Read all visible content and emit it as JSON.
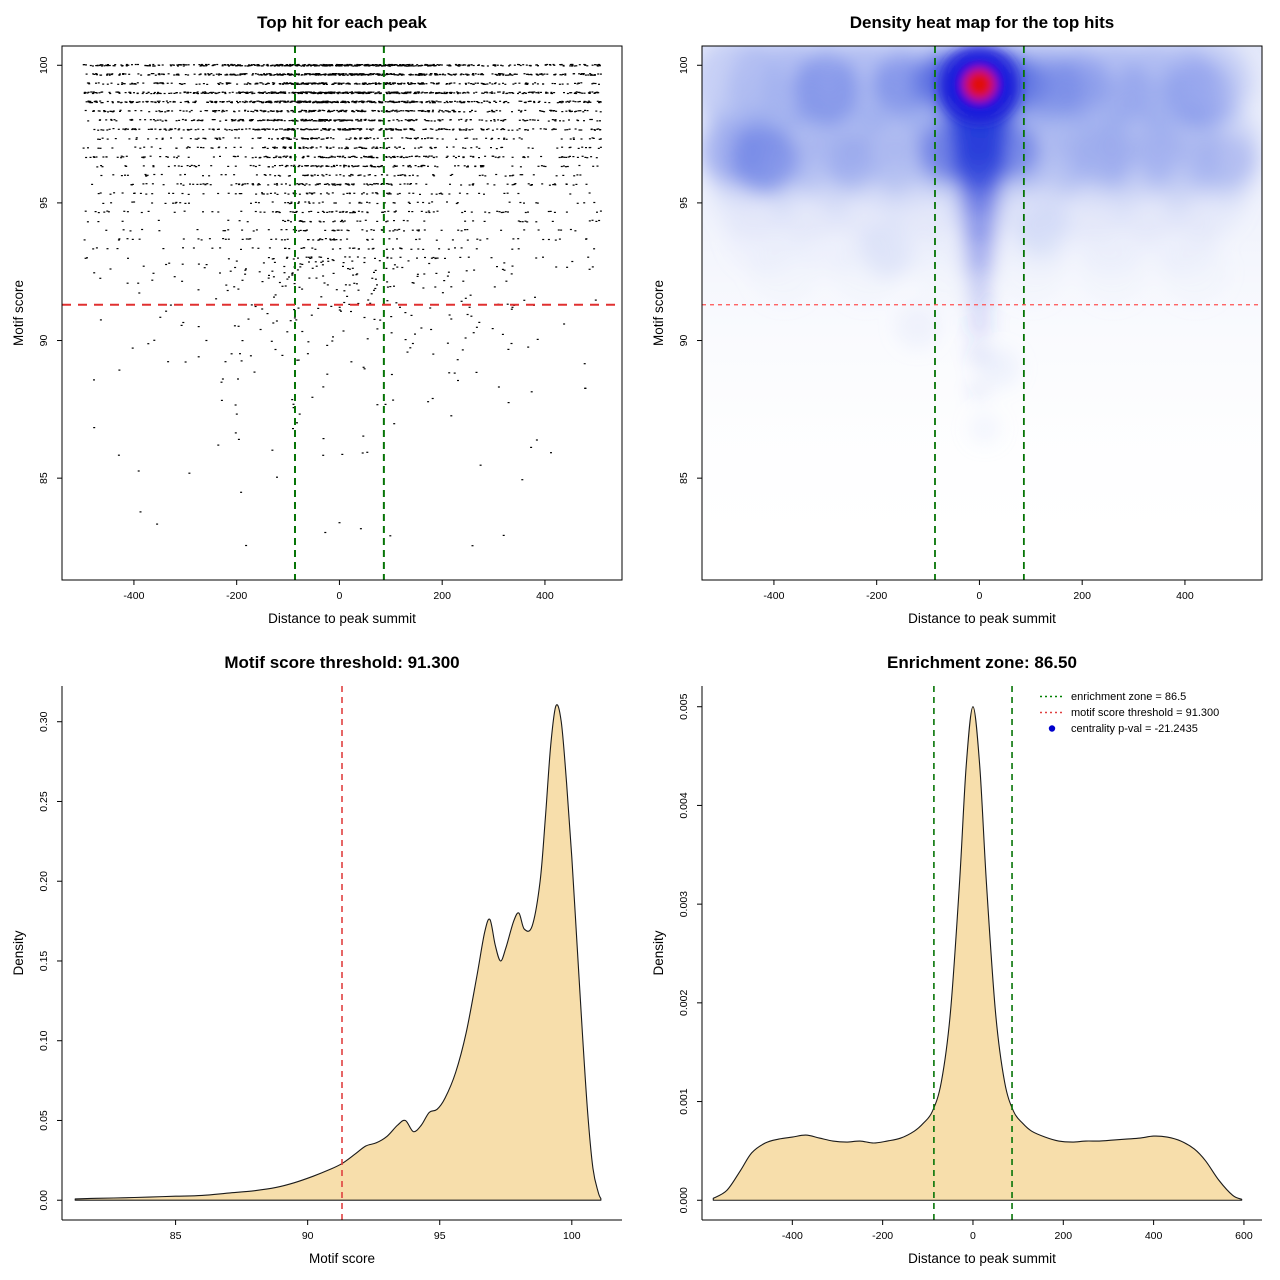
{
  "page": {
    "background": "#ffffff"
  },
  "values": {
    "motif_score_threshold": "91.300",
    "enrichment_zone": "86.50",
    "centrality_pval": "-21.2435"
  },
  "chart_data": [
    {
      "type": "scatter",
      "title": "Top hit for each peak",
      "xlabel": "Distance to peak summit",
      "ylabel": "Motif score",
      "xlim": [
        -540,
        550
      ],
      "ylim": [
        81.3,
        100.7
      ],
      "xticks": [
        -400,
        -200,
        0,
        200,
        400
      ],
      "yticks": [
        85,
        90,
        95,
        100
      ],
      "ytick_labels": [
        "85",
        "90",
        "95",
        "100"
      ],
      "point_color": "#000000",
      "vlines": {
        "x": [
          -86.5,
          86.5
        ],
        "color": "#067406",
        "width": 2,
        "dash": "7 5"
      },
      "hline": {
        "y": 91.3,
        "color": "#e03030",
        "width": 2,
        "dash": "9 7"
      },
      "generator": {
        "seed": 42,
        "rows": {
          "y_top": 100,
          "y_bottom": 93,
          "step": 0.333,
          "count_top": 520,
          "decay": 0.885,
          "uniform_frac": 0.55,
          "x_uniform": [
            -500,
            510
          ],
          "x_sigma": 115
        },
        "tail": {
          "count": 330,
          "y_top": 93,
          "y_min": 82.4,
          "x_sigma": 150,
          "uniform_frac": 0.45,
          "decay_scale": 2.4
        }
      }
    },
    {
      "type": "heatmap",
      "title": "Density heat map for the top hits",
      "xlabel": "Distance to peak summit",
      "ylabel": "Motif score",
      "xlim": [
        -540,
        550
      ],
      "ylim": [
        81.3,
        100.7
      ],
      "xticks": [
        -400,
        -200,
        0,
        200,
        400
      ],
      "yticks": [
        85,
        90,
        95,
        100
      ],
      "ytick_labels": [
        "85",
        "90",
        "95",
        "100"
      ],
      "hotspot": {
        "x": 0,
        "y": 99.3
      },
      "vlines": {
        "x": [
          -86.5,
          86.5
        ],
        "color": "#067406",
        "width": 1.8,
        "dash": "7 5"
      },
      "hline": {
        "y": 91.3,
        "color": "#ff5050",
        "width": 1.3,
        "dash": "4 4"
      },
      "bands": [
        {
          "y": 99.3,
          "from": -470,
          "to": 500,
          "step": 70,
          "r": 46,
          "color": "#8296ea",
          "opacity": 0.3
        },
        {
          "y": 98.1,
          "from": -450,
          "to": 480,
          "step": 95,
          "r": 40,
          "color": "#9caeee",
          "opacity": 0.16
        },
        {
          "y": 97.0,
          "from": -470,
          "to": 500,
          "step": 78,
          "r": 42,
          "color": "#8296ea",
          "opacity": 0.24
        },
        {
          "y": 96.3,
          "from": -460,
          "to": 490,
          "step": 85,
          "r": 38,
          "color": "#92a2ec",
          "opacity": 0.2
        },
        {
          "y": 95.1,
          "from": -440,
          "to": 470,
          "step": 110,
          "r": 40,
          "color": "#aab8f0",
          "opacity": 0.13
        },
        {
          "y": 93.8,
          "from": -420,
          "to": 450,
          "step": 135,
          "r": 38,
          "color": "#bac5f2",
          "opacity": 0.09
        },
        {
          "y": 92.5,
          "from": -380,
          "to": 420,
          "step": 160,
          "r": 34,
          "color": "#c6cff4",
          "opacity": 0.07
        }
      ],
      "spots": [
        {
          "x": -48,
          "y": 99.6,
          "r": 26,
          "color": "#2a3cd8",
          "opacity": 0.6
        },
        {
          "x": 48,
          "y": 99.6,
          "r": 26,
          "color": "#2a3cd8",
          "opacity": 0.6
        },
        {
          "x": -40,
          "y": 98.8,
          "r": 24,
          "color": "#2a3cd8",
          "opacity": 0.55
        },
        {
          "x": 40,
          "y": 98.8,
          "r": 24,
          "color": "#2a3cd8",
          "opacity": 0.55
        },
        {
          "x": -80,
          "y": 99.4,
          "r": 26,
          "color": "#3b52dc",
          "opacity": 0.5
        },
        {
          "x": 90,
          "y": 99.3,
          "r": 26,
          "color": "#4e66e0",
          "opacity": 0.5
        },
        {
          "x": -150,
          "y": 99.3,
          "r": 28,
          "color": "#5a70e2",
          "opacity": 0.45
        },
        {
          "x": -300,
          "y": 99.1,
          "r": 34,
          "color": "#5a70e2",
          "opacity": 0.4
        },
        {
          "x": 150,
          "y": 99.2,
          "r": 30,
          "color": "#5a70e2",
          "opacity": 0.4
        },
        {
          "x": 200,
          "y": 99.3,
          "r": 28,
          "color": "#6a7ee5",
          "opacity": 0.35
        },
        {
          "x": 300,
          "y": 99.0,
          "r": 26,
          "color": "#7b8fe8",
          "opacity": 0.3
        },
        {
          "x": 430,
          "y": 99.0,
          "r": 34,
          "color": "#6a7ee5",
          "opacity": 0.35
        },
        {
          "x": -420,
          "y": 96.6,
          "r": 34,
          "color": "#4e66e0",
          "opacity": 0.45
        },
        {
          "x": -480,
          "y": 96.9,
          "r": 30,
          "color": "#6a7ee5",
          "opacity": 0.35
        },
        {
          "x": -250,
          "y": 96.6,
          "r": 26,
          "color": "#7b8fe8",
          "opacity": 0.3
        },
        {
          "x": -60,
          "y": 96.9,
          "r": 30,
          "color": "#3b52dc",
          "opacity": 0.5
        },
        {
          "x": 60,
          "y": 96.9,
          "r": 28,
          "color": "#3b52dc",
          "opacity": 0.45
        },
        {
          "x": 240,
          "y": 96.8,
          "r": 30,
          "color": "#7b8fe8",
          "opacity": 0.3
        },
        {
          "x": 350,
          "y": 96.9,
          "r": 26,
          "color": "#8a9cea",
          "opacity": 0.25
        },
        {
          "x": 480,
          "y": 96.5,
          "r": 26,
          "color": "#8a9cea",
          "opacity": 0.3
        },
        {
          "x": -180,
          "y": 93.2,
          "r": 26,
          "color": "#aab8f0",
          "opacity": 0.2
        },
        {
          "x": 120,
          "y": 94.0,
          "r": 26,
          "color": "#9fb0ee",
          "opacity": 0.22
        },
        {
          "x": -120,
          "y": 90.5,
          "r": 22,
          "color": "#c0cbf4",
          "opacity": 0.18
        },
        {
          "x": 40,
          "y": 89.0,
          "r": 20,
          "color": "#c0cbf4",
          "opacity": 0.2
        },
        {
          "x": 10,
          "y": 86.8,
          "r": 16,
          "color": "#ccd5f6",
          "opacity": 0.2
        }
      ],
      "column": {
        "x": 0,
        "color": "#2238d8",
        "blobs": [
          {
            "y": 98.5,
            "r": 34,
            "opacity": 0.75
          },
          {
            "y": 97.6,
            "r": 30,
            "opacity": 0.6
          },
          {
            "y": 96.9,
            "r": 28,
            "opacity": 0.65
          },
          {
            "y": 96.2,
            "r": 26,
            "opacity": 0.55
          },
          {
            "y": 95.3,
            "r": 22,
            "opacity": 0.4
          },
          {
            "y": 94.4,
            "r": 20,
            "opacity": 0.35
          },
          {
            "y": 93.5,
            "r": 18,
            "opacity": 0.3
          },
          {
            "y": 92.6,
            "r": 16,
            "opacity": 0.25
          },
          {
            "y": 91.6,
            "r": 14,
            "opacity": 0.2
          },
          {
            "y": 90.6,
            "r": 13,
            "opacity": 0.16
          },
          {
            "y": 89.5,
            "r": 12,
            "opacity": 0.12
          },
          {
            "y": 88.2,
            "r": 11,
            "opacity": 0.09
          }
        ]
      },
      "core": [
        {
          "r": 40,
          "color": "#2020d8",
          "opacity": 0.8
        },
        {
          "r": 28,
          "color": "#1010e0",
          "opacity": 0.9
        },
        {
          "r": 16,
          "color": "#e01010",
          "opacity": 1.0
        }
      ]
    },
    {
      "type": "density",
      "title": "Motif score threshold: 91.300",
      "xlabel": "Motif score",
      "ylabel": "Density",
      "xlim": [
        80.7,
        101.9
      ],
      "ylim": [
        -0.0124,
        0.3224
      ],
      "xticks": [
        85,
        90,
        95,
        100
      ],
      "yticks": [
        0,
        0.05,
        0.1,
        0.15,
        0.2,
        0.25,
        0.3
      ],
      "ytick_labels": [
        "0.00",
        "0.05",
        "0.10",
        "0.15",
        "0.20",
        "0.25",
        "0.30"
      ],
      "fill": "#f7deab",
      "stroke": "#1a1a1a",
      "vlines": {
        "x": [
          91.3
        ],
        "color": "#e04040",
        "width": 1.6,
        "dash": "6 5"
      },
      "points": [
        [
          81.2,
          0.0008
        ],
        [
          82,
          0.0012
        ],
        [
          83,
          0.0015
        ],
        [
          84,
          0.002
        ],
        [
          85,
          0.0025
        ],
        [
          86,
          0.003
        ],
        [
          87,
          0.0045
        ],
        [
          88,
          0.006
        ],
        [
          88.8,
          0.008
        ],
        [
          89.5,
          0.011
        ],
        [
          90.2,
          0.015
        ],
        [
          90.8,
          0.019
        ],
        [
          91.3,
          0.023
        ],
        [
          91.8,
          0.029
        ],
        [
          92.2,
          0.034
        ],
        [
          92.6,
          0.036
        ],
        [
          93.0,
          0.04
        ],
        [
          93.4,
          0.047
        ],
        [
          93.7,
          0.05
        ],
        [
          94.0,
          0.043
        ],
        [
          94.3,
          0.047
        ],
        [
          94.6,
          0.055
        ],
        [
          94.9,
          0.057
        ],
        [
          95.2,
          0.064
        ],
        [
          95.6,
          0.08
        ],
        [
          96.0,
          0.105
        ],
        [
          96.4,
          0.14
        ],
        [
          96.7,
          0.168
        ],
        [
          96.9,
          0.176
        ],
        [
          97.1,
          0.16
        ],
        [
          97.3,
          0.15
        ],
        [
          97.5,
          0.158
        ],
        [
          97.8,
          0.175
        ],
        [
          98.0,
          0.18
        ],
        [
          98.2,
          0.17
        ],
        [
          98.5,
          0.172
        ],
        [
          98.8,
          0.2
        ],
        [
          99.0,
          0.24
        ],
        [
          99.2,
          0.285
        ],
        [
          99.4,
          0.31
        ],
        [
          99.6,
          0.3
        ],
        [
          99.8,
          0.262
        ],
        [
          100.0,
          0.215
        ],
        [
          100.2,
          0.16
        ],
        [
          100.4,
          0.105
        ],
        [
          100.6,
          0.055
        ],
        [
          100.8,
          0.02
        ],
        [
          101.0,
          0.005
        ],
        [
          101.1,
          0.001
        ]
      ]
    },
    {
      "type": "density",
      "title": "Enrichment zone: 86.50",
      "xlabel": "Distance to peak summit",
      "ylabel": "Density",
      "xlim": [
        -600,
        640
      ],
      "ylim": [
        -0.0002,
        0.00521
      ],
      "xticks": [
        -400,
        -200,
        0,
        200,
        400,
        600
      ],
      "yticks": [
        0,
        0.001,
        0.002,
        0.003,
        0.004,
        0.005
      ],
      "ytick_labels": [
        "0.000",
        "0.001",
        "0.002",
        "0.003",
        "0.004",
        "0.005"
      ],
      "fill": "#f7deab",
      "stroke": "#1a1a1a",
      "vlines": {
        "x": [
          -86.5,
          86.5
        ],
        "color": "#067406",
        "width": 1.6,
        "dash": "6 5"
      },
      "legend": {
        "entries": [
          {
            "marker": "line",
            "color": "#008000",
            "label": "enrichment zone = 86.5"
          },
          {
            "marker": "line",
            "color": "#e04040",
            "label": "motif score threshold = 91.300"
          },
          {
            "marker": "point",
            "color": "#0000cc",
            "label": "centrality p-val = -21.2435"
          }
        ]
      },
      "points": [
        [
          -575,
          2e-05
        ],
        [
          -545,
          0.0001
        ],
        [
          -515,
          0.0003
        ],
        [
          -490,
          0.00048
        ],
        [
          -460,
          0.00058
        ],
        [
          -430,
          0.00062
        ],
        [
          -400,
          0.00064
        ],
        [
          -370,
          0.00066
        ],
        [
          -340,
          0.00063
        ],
        [
          -310,
          0.0006
        ],
        [
          -280,
          0.00059
        ],
        [
          -250,
          0.0006
        ],
        [
          -220,
          0.00058
        ],
        [
          -190,
          0.0006
        ],
        [
          -160,
          0.00063
        ],
        [
          -130,
          0.0007
        ],
        [
          -110,
          0.00078
        ],
        [
          -90,
          0.0009
        ],
        [
          -70,
          0.0012
        ],
        [
          -50,
          0.0019
        ],
        [
          -30,
          0.0032
        ],
        [
          -15,
          0.0044
        ],
        [
          0,
          0.005
        ],
        [
          15,
          0.0044
        ],
        [
          30,
          0.0032
        ],
        [
          50,
          0.0019
        ],
        [
          70,
          0.0012
        ],
        [
          90,
          0.0009
        ],
        [
          110,
          0.00078
        ],
        [
          130,
          0.0007
        ],
        [
          160,
          0.00064
        ],
        [
          190,
          0.0006
        ],
        [
          220,
          0.00059
        ],
        [
          250,
          0.0006
        ],
        [
          280,
          0.0006
        ],
        [
          310,
          0.00061
        ],
        [
          340,
          0.00062
        ],
        [
          370,
          0.00063
        ],
        [
          400,
          0.00065
        ],
        [
          430,
          0.00064
        ],
        [
          460,
          0.0006
        ],
        [
          490,
          0.00052
        ],
        [
          515,
          0.0004
        ],
        [
          545,
          0.0002
        ],
        [
          575,
          5e-05
        ],
        [
          595,
          1e-05
        ]
      ]
    }
  ]
}
